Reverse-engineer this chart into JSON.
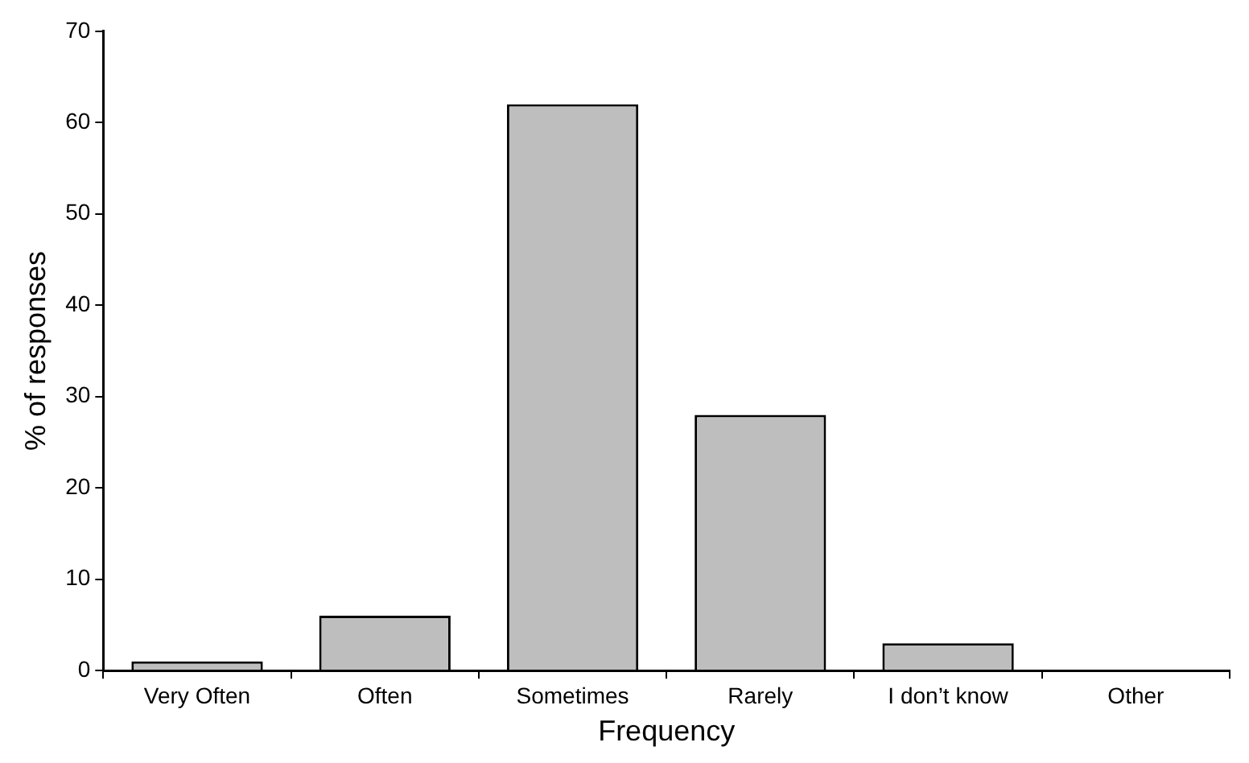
{
  "chart_data": {
    "type": "bar",
    "xlabel": "Frequency",
    "ylabel": "% of responses",
    "categories": [
      "Very Often",
      "Often",
      "Sometimes",
      "Rarely",
      "I don’t know",
      "Other"
    ],
    "values": [
      1,
      6,
      62,
      28,
      3,
      0
    ],
    "color": "#bebebe",
    "ylim": [
      0,
      70
    ],
    "yticks": [
      0,
      10,
      20,
      30,
      40,
      50,
      60,
      70
    ],
    "grid": false,
    "legend": false
  }
}
